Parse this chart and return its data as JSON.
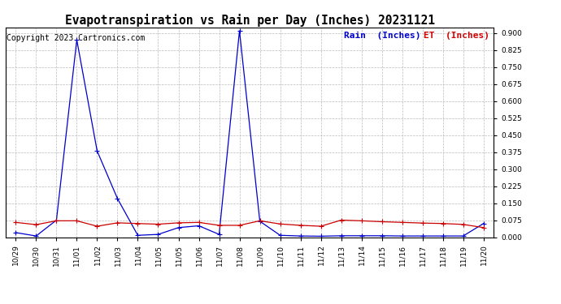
{
  "title": "Evapotranspiration vs Rain per Day (Inches) 20231121",
  "copyright": "Copyright 2023 Cartronics.com",
  "legend_rain": "Rain  (Inches)",
  "legend_et": "ET  (Inches)",
  "x_labels": [
    "10/29",
    "10/30",
    "10/31",
    "11/01",
    "11/02",
    "11/03",
    "11/04",
    "11/05",
    "11/05",
    "11/06",
    "11/07",
    "11/08",
    "11/09",
    "11/10",
    "11/11",
    "11/12",
    "11/13",
    "11/14",
    "11/15",
    "11/16",
    "11/17",
    "11/18",
    "11/19",
    "11/20"
  ],
  "rain": [
    0.02,
    0.005,
    0.075,
    0.87,
    0.38,
    0.17,
    0.008,
    0.012,
    0.042,
    0.05,
    0.012,
    0.91,
    0.07,
    0.008,
    0.005,
    0.004,
    0.006,
    0.006,
    0.006,
    0.005,
    0.005,
    0.005,
    0.005,
    0.06
  ],
  "et": [
    0.065,
    0.055,
    0.072,
    0.072,
    0.048,
    0.063,
    0.06,
    0.057,
    0.063,
    0.065,
    0.052,
    0.052,
    0.072,
    0.058,
    0.052,
    0.048,
    0.075,
    0.072,
    0.068,
    0.065,
    0.062,
    0.06,
    0.056,
    0.042
  ],
  "ylim": [
    0.0,
    0.925
  ],
  "yticks": [
    0.0,
    0.075,
    0.15,
    0.225,
    0.3,
    0.375,
    0.45,
    0.525,
    0.6,
    0.675,
    0.75,
    0.825,
    0.9
  ],
  "rain_color": "#0000cc",
  "et_color": "#cc0000",
  "background_color": "#ffffff",
  "grid_color": "#bbbbbb",
  "title_fontsize": 10.5,
  "copyright_fontsize": 7,
  "legend_fontsize": 8,
  "tick_fontsize": 6.5
}
